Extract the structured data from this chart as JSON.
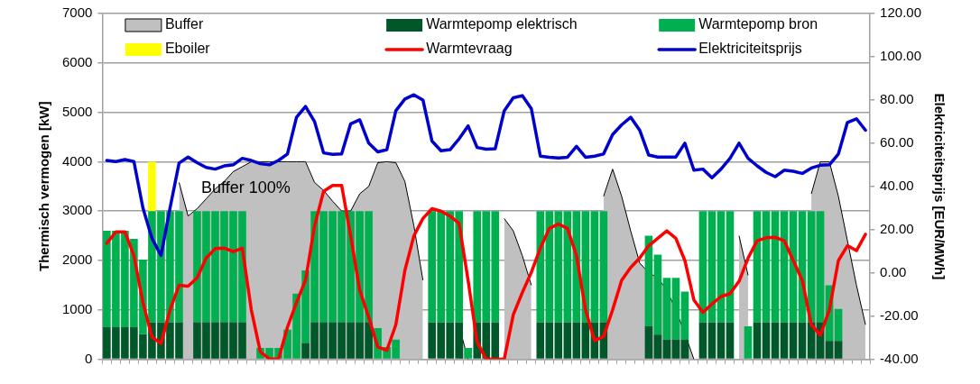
{
  "chart_data": {
    "type": "bar",
    "stacked": true,
    "grid": "y",
    "legend": "top",
    "ylabel": "Thermisch vermogen [kW]",
    "y2label": "Elektriciteitsprijs [EUR/MWh]",
    "annotations": [
      "Buffer 100%"
    ],
    "categories": [
      null,
      null,
      null,
      null,
      null,
      null,
      null,
      null,
      null,
      null,
      null,
      null,
      null,
      null,
      null,
      null,
      null,
      null,
      null,
      null,
      null,
      null,
      null,
      null,
      null,
      null,
      null,
      null,
      null,
      null,
      null,
      null,
      null,
      null,
      null,
      null,
      null,
      null,
      null,
      null,
      null,
      null,
      null,
      null,
      null,
      null,
      null,
      null,
      null,
      null,
      null,
      null,
      null,
      null,
      null,
      null,
      null,
      null,
      null,
      null,
      null,
      null,
      null,
      null,
      null,
      null,
      null,
      null,
      null,
      null,
      null,
      null,
      null,
      null,
      null,
      null,
      null,
      null,
      null,
      null,
      null,
      null,
      null,
      null,
      null
    ],
    "ylim": [
      0,
      7000
    ],
    "yticks": [
      0,
      1000,
      2000,
      3000,
      4000,
      5000,
      6000,
      7000
    ],
    "y2lim": [
      -40,
      120
    ],
    "y2ticks": [
      {
        "value": -40,
        "label": "-40.00"
      },
      {
        "value": -20,
        "label": "-20.00"
      },
      {
        "value": 0,
        "label": "0.00"
      },
      {
        "value": 20,
        "label": "20.00"
      },
      {
        "value": 40,
        "label": "40.00"
      },
      {
        "value": 60,
        "label": "60.00"
      },
      {
        "value": 80,
        "label": "80.00"
      },
      {
        "value": 100,
        "label": "100.00"
      },
      {
        "value": 120,
        "label": "120.00"
      }
    ],
    "series": [
      {
        "name": "Buffer",
        "type": "area",
        "color": "#c0c0c0",
        "values": [
          null,
          null,
          null,
          null,
          null,
          null,
          null,
          null,
          3580,
          2900,
          3050,
          3250,
          3450,
          3600,
          3800,
          3900,
          4000,
          4000,
          4000,
          4000,
          4000,
          4000,
          4000,
          3580,
          3420,
          3200,
          3000,
          3000,
          3350,
          3500,
          3980,
          4000,
          3980,
          3600,
          2700,
          1600,
          null,
          null,
          null,
          670,
          0,
          null,
          null,
          null,
          2850,
          2600,
          2100,
          1500,
          null,
          null,
          null,
          null,
          null,
          null,
          null,
          3300,
          3850,
          3300,
          2600,
          1950,
          1750,
          1650,
          1400,
          1000,
          520,
          0,
          null,
          null,
          null,
          null,
          2500,
          1700,
          null,
          null,
          null,
          null,
          null,
          null,
          3350,
          4000,
          4000,
          3300,
          2400,
          1500,
          700
        ]
      },
      {
        "name": "Warmtepomp elektrisch",
        "color": "#00582a",
        "values": [
          650,
          650,
          650,
          650,
          510,
          750,
          750,
          750,
          750,
          null,
          750,
          750,
          750,
          750,
          750,
          750,
          null,
          null,
          null,
          null,
          null,
          null,
          330,
          750,
          750,
          750,
          750,
          750,
          750,
          750,
          null,
          null,
          null,
          null,
          null,
          null,
          750,
          750,
          750,
          750,
          null,
          750,
          750,
          750,
          null,
          null,
          null,
          null,
          750,
          750,
          750,
          750,
          750,
          750,
          750,
          750,
          null,
          null,
          null,
          null,
          670,
          500,
          400,
          400,
          400,
          null,
          750,
          750,
          750,
          750,
          null,
          null,
          750,
          750,
          750,
          750,
          750,
          750,
          750,
          750,
          370,
          370,
          null,
          null,
          null
        ]
      },
      {
        "name": "Warmtepomp bron",
        "color": "#00b050",
        "values": [
          1950,
          1950,
          1950,
          1790,
          1510,
          2250,
          2250,
          2250,
          2250,
          null,
          2250,
          2250,
          2250,
          2250,
          2250,
          2250,
          null,
          230,
          230,
          230,
          600,
          1330,
          1470,
          2250,
          2250,
          2250,
          2250,
          2250,
          2250,
          2250,
          630,
          250,
          400,
          null,
          null,
          null,
          2250,
          2250,
          2250,
          2250,
          230,
          2250,
          2250,
          2250,
          null,
          null,
          null,
          null,
          2250,
          2250,
          2250,
          2250,
          2250,
          2250,
          2250,
          2250,
          null,
          null,
          null,
          null,
          1830,
          1620,
          1250,
          1250,
          970,
          null,
          2250,
          2250,
          2250,
          2250,
          null,
          670,
          2250,
          2250,
          2250,
          2250,
          2250,
          2250,
          2250,
          2250,
          1130,
          650,
          null,
          null,
          null
        ]
      },
      {
        "name": "Eboiler",
        "color": "#ffff00",
        "values": [
          null,
          null,
          null,
          null,
          null,
          1000,
          null,
          null,
          null,
          null,
          null,
          null,
          null,
          null,
          null,
          null,
          null,
          null,
          null,
          null,
          null,
          null,
          null,
          null,
          null,
          null,
          null,
          null,
          null,
          null,
          null,
          null,
          null,
          null,
          null,
          null,
          null,
          null,
          null,
          null,
          null,
          null,
          null,
          null,
          null,
          null,
          null,
          null,
          null,
          null,
          null,
          null,
          null,
          null,
          null,
          null,
          null,
          null,
          null,
          null,
          null,
          null,
          null,
          null,
          null,
          null,
          null,
          null,
          null,
          null,
          null,
          null,
          null,
          null,
          null,
          null,
          null,
          null,
          null,
          null,
          null,
          null,
          null,
          null,
          null
        ]
      },
      {
        "name": "Warmtevraag",
        "type": "line",
        "color": "#ff0000",
        "values": [
          2350,
          2580,
          2580,
          2100,
          1150,
          450,
          320,
          1000,
          1500,
          1480,
          1650,
          2050,
          2240,
          2250,
          2180,
          2250,
          1000,
          150,
          10,
          0,
          650,
          1150,
          1600,
          2700,
          3400,
          3520,
          3520,
          2500,
          1400,
          850,
          250,
          180,
          700,
          1800,
          2500,
          2850,
          3050,
          3000,
          2900,
          2750,
          1600,
          350,
          0,
          0,
          0,
          900,
          1350,
          1760,
          2250,
          2650,
          2740,
          2650,
          2100,
          1000,
          380,
          460,
          1000,
          1600,
          1860,
          2050,
          2300,
          2450,
          2600,
          2450,
          2000,
          1200,
          950,
          1120,
          1270,
          1330,
          1580,
          2050,
          2400,
          2460,
          2470,
          2400,
          2000,
          1600,
          700,
          490,
          1000,
          2000,
          2300,
          2200,
          2530
        ]
      },
      {
        "name": "Elektriciteitsprijs",
        "type": "line",
        "axis": "y2",
        "color": "#0000cc",
        "values": [
          52,
          51.5,
          52.4,
          51.5,
          30,
          16,
          8,
          30,
          50.8,
          53.6,
          51,
          48.8,
          48,
          49.5,
          50,
          53,
          52,
          50.5,
          50,
          52,
          55,
          72,
          77,
          70,
          55.5,
          54.8,
          55,
          69,
          70.8,
          60,
          56,
          57,
          75,
          80.4,
          82.4,
          80,
          61,
          56.5,
          57,
          62,
          68,
          58,
          57.2,
          57.4,
          75,
          81,
          82,
          76,
          54,
          53.5,
          53.2,
          53.5,
          58.5,
          53.5,
          54,
          55,
          64,
          68.5,
          72,
          66,
          54.5,
          53.6,
          53.6,
          53.6,
          60,
          47.5,
          48,
          44,
          48,
          53,
          60,
          53,
          49.5,
          46.5,
          44.5,
          47.5,
          47,
          46,
          48.5,
          49.8,
          50,
          55,
          69.6,
          71.3,
          66
        ]
      }
    ]
  }
}
